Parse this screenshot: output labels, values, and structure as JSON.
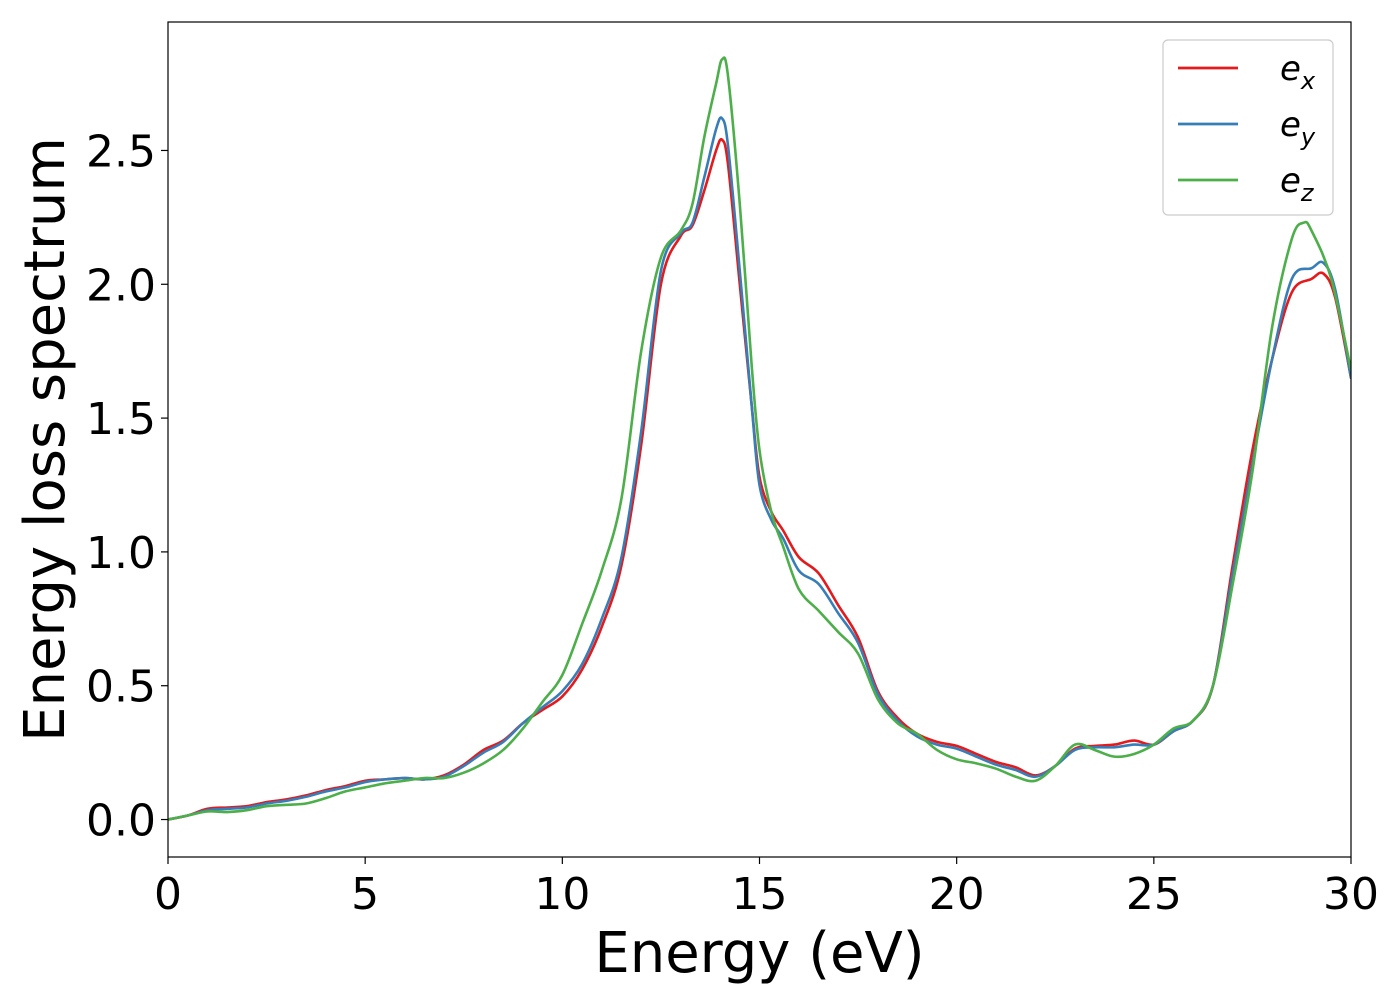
{
  "chart_data": {
    "type": "line",
    "title": "",
    "xlabel": "Energy (eV)",
    "ylabel": "Energy loss spectrum",
    "xlim": [
      0,
      30
    ],
    "ylim": [
      -0.14,
      2.98
    ],
    "xticks": [
      0,
      5,
      10,
      15,
      20,
      25,
      30
    ],
    "xtick_labels": [
      "0",
      "5",
      "10",
      "15",
      "20",
      "25",
      "30"
    ],
    "yticks": [
      0.0,
      0.5,
      1.0,
      1.5,
      2.0,
      2.5
    ],
    "ytick_labels": [
      "0.0",
      "0.5",
      "1.0",
      "1.5",
      "2.0",
      "2.5"
    ],
    "grid": false,
    "legend_position": "top-right",
    "series": [
      {
        "name": "e_x",
        "legend_base": "e",
        "legend_sub": "x",
        "color": "#e41a1c",
        "x": [
          0,
          0.5,
          1.0,
          1.5,
          2.0,
          2.5,
          3.0,
          3.5,
          4.0,
          4.5,
          5.0,
          5.5,
          6.0,
          6.5,
          7.0,
          7.5,
          8.0,
          8.5,
          9.0,
          9.5,
          10.0,
          10.5,
          11.0,
          11.5,
          12.0,
          12.5,
          13.0,
          13.3,
          13.6,
          13.9,
          14.05,
          14.2,
          14.5,
          14.8,
          15.0,
          15.3,
          15.6,
          16.0,
          16.5,
          17.0,
          17.5,
          18.0,
          18.5,
          19.0,
          19.5,
          20.0,
          20.5,
          21.0,
          21.5,
          22.0,
          22.5,
          23.0,
          23.5,
          24.0,
          24.5,
          25.0,
          25.5,
          26.0,
          26.5,
          27.0,
          27.5,
          28.0,
          28.5,
          29.0,
          29.3,
          29.6,
          30.0
        ],
        "y": [
          0.0,
          0.015,
          0.04,
          0.045,
          0.05,
          0.065,
          0.075,
          0.09,
          0.11,
          0.125,
          0.145,
          0.15,
          0.155,
          0.15,
          0.165,
          0.205,
          0.26,
          0.295,
          0.36,
          0.41,
          0.46,
          0.56,
          0.72,
          0.95,
          1.4,
          2.0,
          2.18,
          2.22,
          2.35,
          2.5,
          2.54,
          2.45,
          2.0,
          1.55,
          1.28,
          1.15,
          1.08,
          0.98,
          0.92,
          0.8,
          0.68,
          0.48,
          0.38,
          0.32,
          0.29,
          0.275,
          0.245,
          0.215,
          0.195,
          0.165,
          0.2,
          0.265,
          0.275,
          0.28,
          0.295,
          0.28,
          0.33,
          0.37,
          0.5,
          0.95,
          1.38,
          1.72,
          1.97,
          2.02,
          2.04,
          1.95,
          1.65
        ]
      },
      {
        "name": "e_y",
        "legend_base": "e",
        "legend_sub": "y",
        "color": "#377eb8",
        "x": [
          0,
          0.5,
          1.0,
          1.5,
          2.0,
          2.5,
          3.0,
          3.5,
          4.0,
          4.5,
          5.0,
          5.5,
          6.0,
          6.5,
          7.0,
          7.5,
          8.0,
          8.5,
          9.0,
          9.5,
          10.0,
          10.5,
          11.0,
          11.5,
          12.0,
          12.5,
          13.0,
          13.3,
          13.6,
          13.9,
          14.05,
          14.2,
          14.5,
          14.8,
          15.0,
          15.3,
          15.6,
          16.0,
          16.5,
          17.0,
          17.5,
          18.0,
          18.5,
          19.0,
          19.5,
          20.0,
          20.5,
          21.0,
          21.5,
          22.0,
          22.5,
          23.0,
          23.5,
          24.0,
          24.5,
          25.0,
          25.5,
          26.0,
          26.5,
          27.0,
          27.5,
          28.0,
          28.5,
          29.0,
          29.3,
          29.6,
          30.0
        ],
        "y": [
          0.0,
          0.015,
          0.035,
          0.04,
          0.045,
          0.06,
          0.07,
          0.085,
          0.105,
          0.12,
          0.14,
          0.15,
          0.155,
          0.15,
          0.16,
          0.2,
          0.25,
          0.29,
          0.36,
          0.42,
          0.48,
          0.58,
          0.75,
          0.98,
          1.45,
          2.05,
          2.19,
          2.23,
          2.4,
          2.58,
          2.62,
          2.52,
          2.05,
          1.55,
          1.25,
          1.12,
          1.05,
          0.93,
          0.88,
          0.77,
          0.66,
          0.47,
          0.37,
          0.31,
          0.28,
          0.265,
          0.235,
          0.205,
          0.185,
          0.16,
          0.2,
          0.26,
          0.27,
          0.27,
          0.28,
          0.28,
          0.33,
          0.37,
          0.5,
          0.92,
          1.33,
          1.72,
          2.02,
          2.06,
          2.08,
          1.98,
          1.65
        ]
      },
      {
        "name": "e_z",
        "legend_base": "e",
        "legend_sub": "z",
        "color": "#4daf4a",
        "x": [
          0,
          0.5,
          1.0,
          1.5,
          2.0,
          2.5,
          3.0,
          3.5,
          4.0,
          4.5,
          5.0,
          5.5,
          6.0,
          6.5,
          7.0,
          7.5,
          8.0,
          8.5,
          9.0,
          9.5,
          10.0,
          10.5,
          11.0,
          11.5,
          12.0,
          12.5,
          13.0,
          13.3,
          13.6,
          13.9,
          14.05,
          14.2,
          14.5,
          14.8,
          15.0,
          15.3,
          15.6,
          16.0,
          16.5,
          17.0,
          17.5,
          18.0,
          18.5,
          19.0,
          19.5,
          20.0,
          20.5,
          21.0,
          21.5,
          22.0,
          22.5,
          23.0,
          23.5,
          24.0,
          24.5,
          25.0,
          25.5,
          26.0,
          26.5,
          27.0,
          27.5,
          28.0,
          28.5,
          28.8,
          29.0,
          29.5,
          30.0
        ],
        "y": [
          0.0,
          0.015,
          0.03,
          0.028,
          0.035,
          0.05,
          0.055,
          0.06,
          0.08,
          0.105,
          0.12,
          0.135,
          0.145,
          0.155,
          0.155,
          0.175,
          0.21,
          0.26,
          0.34,
          0.44,
          0.54,
          0.73,
          0.93,
          1.2,
          1.75,
          2.1,
          2.2,
          2.3,
          2.55,
          2.75,
          2.84,
          2.78,
          2.3,
          1.7,
          1.38,
          1.15,
          1.02,
          0.86,
          0.78,
          0.7,
          0.62,
          0.45,
          0.36,
          0.32,
          0.26,
          0.225,
          0.21,
          0.19,
          0.16,
          0.145,
          0.2,
          0.28,
          0.26,
          0.235,
          0.245,
          0.28,
          0.34,
          0.37,
          0.5,
          0.88,
          1.3,
          1.84,
          2.17,
          2.23,
          2.2,
          2.02,
          1.68
        ]
      }
    ]
  }
}
